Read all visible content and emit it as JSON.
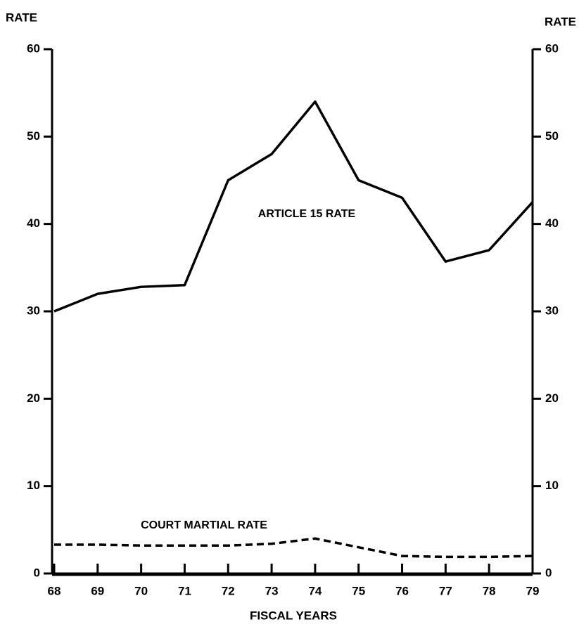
{
  "chart_data": {
    "type": "line",
    "y_axis_label": "RATE",
    "y2_axis_label": "RATE",
    "x_axis_label": "FISCAL YEARS",
    "x": [
      68,
      69,
      70,
      71,
      72,
      73,
      74,
      75,
      76,
      77,
      78,
      79
    ],
    "xlim": [
      68,
      79
    ],
    "xticks": [
      68,
      69,
      70,
      71,
      72,
      73,
      74,
      75,
      76,
      77,
      78,
      79
    ],
    "ylim": [
      0,
      60
    ],
    "yticks": [
      0,
      10,
      20,
      30,
      40,
      50,
      60
    ],
    "y2lim": [
      0,
      60
    ],
    "y2ticks": [
      0,
      10,
      20,
      30,
      40,
      50,
      60
    ],
    "series": [
      {
        "name": "ARTICLE 15 RATE",
        "color": "#000000",
        "line_style": "solid",
        "values": [
          30,
          32,
          32.8,
          33,
          45,
          48,
          54,
          45,
          43,
          35.7,
          37,
          42.5
        ]
      },
      {
        "name": "COURT MARTIAL RATE",
        "color": "#000000",
        "line_style": "dashed",
        "values": [
          3.3,
          3.3,
          3.2,
          3.2,
          3.2,
          3.4,
          4.0,
          3.0,
          2.0,
          1.9,
          1.9,
          2.0
        ]
      }
    ]
  }
}
